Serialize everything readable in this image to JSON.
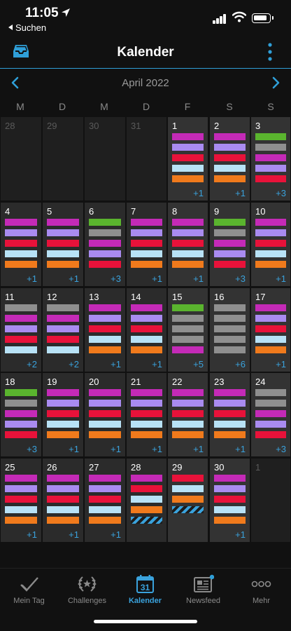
{
  "status_bar": {
    "time": "11:05",
    "back_label": "Suchen"
  },
  "nav": {
    "title": "Kalender",
    "inbox_icon": "inbox-icon",
    "more_icon": "vertical-dots-icon"
  },
  "month": {
    "label": "April 2022"
  },
  "weekdays": [
    "M",
    "D",
    "M",
    "D",
    "F",
    "S",
    "S"
  ],
  "colors": {
    "accent": "#2f9fd8",
    "magenta": "#c42ab7",
    "lavender": "#a98bf0",
    "red": "#e8123a",
    "lightblue": "#b8e2f6",
    "orange": "#f07a1c",
    "green": "#5ab42e",
    "gray": "#8f8f8f",
    "stripe": "#3aa2dc",
    "more_count": "#3aa2dc"
  },
  "days": [
    {
      "day": "28",
      "out": true,
      "bars": [],
      "more": ""
    },
    {
      "day": "29",
      "out": true,
      "bars": [],
      "more": ""
    },
    {
      "day": "30",
      "out": true,
      "bars": [],
      "more": ""
    },
    {
      "day": "31",
      "out": true,
      "bars": [],
      "more": ""
    },
    {
      "day": "1",
      "bars": [
        "magenta",
        "lavender",
        "red",
        "lightblue",
        "orange"
      ],
      "more": "+1"
    },
    {
      "day": "2",
      "bars": [
        "magenta",
        "lavender",
        "red",
        "lightblue",
        "orange"
      ],
      "more": "+1"
    },
    {
      "day": "3",
      "bars": [
        "green",
        "gray",
        "magenta",
        "lavender",
        "red"
      ],
      "more": "+3"
    },
    {
      "day": "4",
      "bars": [
        "magenta",
        "lavender",
        "red",
        "lightblue",
        "orange"
      ],
      "more": "+1"
    },
    {
      "day": "5",
      "bars": [
        "magenta",
        "lavender",
        "red",
        "lightblue",
        "orange"
      ],
      "more": "+1"
    },
    {
      "day": "6",
      "bars": [
        "green",
        "gray",
        "magenta",
        "lavender",
        "red"
      ],
      "more": "+3"
    },
    {
      "day": "7",
      "bars": [
        "magenta",
        "lavender",
        "red",
        "lightblue",
        "orange"
      ],
      "more": "+1"
    },
    {
      "day": "8",
      "bars": [
        "magenta",
        "lavender",
        "red",
        "lightblue",
        "orange"
      ],
      "more": "+1"
    },
    {
      "day": "9",
      "bars": [
        "green",
        "gray",
        "magenta",
        "lavender",
        "red"
      ],
      "more": "+3"
    },
    {
      "day": "10",
      "bars": [
        "magenta",
        "lavender",
        "red",
        "lightblue",
        "orange"
      ],
      "more": "+1"
    },
    {
      "day": "11",
      "bars": [
        "gray",
        "magenta",
        "lavender",
        "red",
        "lightblue"
      ],
      "more": "+2"
    },
    {
      "day": "12",
      "bars": [
        "gray",
        "magenta",
        "lavender",
        "red",
        "lightblue"
      ],
      "more": "+2"
    },
    {
      "day": "13",
      "bars": [
        "magenta",
        "lavender",
        "red",
        "lightblue",
        "orange"
      ],
      "more": "+1"
    },
    {
      "day": "14",
      "bars": [
        "magenta",
        "lavender",
        "red",
        "lightblue",
        "orange"
      ],
      "more": "+1"
    },
    {
      "day": "15",
      "bars": [
        "green",
        "gray",
        "gray",
        "gray",
        "magenta"
      ],
      "more": "+5"
    },
    {
      "day": "16",
      "bars": [
        "gray",
        "gray",
        "gray",
        "gray",
        "gray"
      ],
      "more": "+6"
    },
    {
      "day": "17",
      "bars": [
        "magenta",
        "lavender",
        "red",
        "lightblue",
        "orange"
      ],
      "more": "+1"
    },
    {
      "day": "18",
      "bars": [
        "green",
        "gray",
        "magenta",
        "lavender",
        "red"
      ],
      "more": "+3"
    },
    {
      "day": "19",
      "bars": [
        "magenta",
        "lavender",
        "red",
        "lightblue",
        "orange"
      ],
      "more": "+1"
    },
    {
      "day": "20",
      "bars": [
        "magenta",
        "lavender",
        "red",
        "lightblue",
        "orange"
      ],
      "more": "+1"
    },
    {
      "day": "21",
      "bars": [
        "magenta",
        "lavender",
        "red",
        "lightblue",
        "orange"
      ],
      "more": "+1"
    },
    {
      "day": "22",
      "bars": [
        "magenta",
        "lavender",
        "red",
        "lightblue",
        "orange"
      ],
      "more": "+1"
    },
    {
      "day": "23",
      "bars": [
        "magenta",
        "lavender",
        "red",
        "lightblue",
        "orange"
      ],
      "more": "+1"
    },
    {
      "day": "24",
      "bars": [
        "gray",
        "gray",
        "magenta",
        "lavender",
        "red"
      ],
      "more": "+3"
    },
    {
      "day": "25",
      "bars": [
        "magenta",
        "lavender",
        "red",
        "lightblue",
        "orange"
      ],
      "more": "+1"
    },
    {
      "day": "26",
      "bars": [
        "magenta",
        "lavender",
        "red",
        "lightblue",
        "orange"
      ],
      "more": "+1"
    },
    {
      "day": "27",
      "bars": [
        "magenta",
        "lavender",
        "red",
        "lightblue",
        "orange"
      ],
      "more": "+1"
    },
    {
      "day": "28",
      "bars": [
        "magenta",
        "red",
        "lightblue",
        "orange",
        "stripe"
      ],
      "more": ""
    },
    {
      "day": "29",
      "bars": [
        "red",
        "lightblue",
        "orange",
        "stripe"
      ],
      "more": ""
    },
    {
      "day": "30",
      "bars": [
        "magenta",
        "lavender",
        "red",
        "lightblue",
        "orange"
      ],
      "more": "+1"
    },
    {
      "day": "1",
      "out": true,
      "bars": [],
      "more": ""
    }
  ],
  "tabs": [
    {
      "label": "Mein Tag",
      "icon": "checkmark-icon",
      "active": false
    },
    {
      "label": "Challenges",
      "icon": "laurel-icon",
      "active": false
    },
    {
      "label": "Kalender",
      "icon": "calendar-icon",
      "active": true,
      "icon_text": "31"
    },
    {
      "label": "Newsfeed",
      "icon": "newspaper-icon",
      "active": false
    },
    {
      "label": "Mehr",
      "icon": "ellipsis-icon",
      "active": false
    }
  ]
}
